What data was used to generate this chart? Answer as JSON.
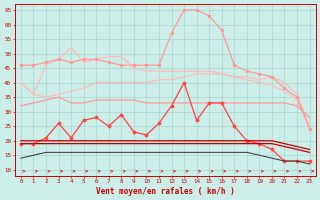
{
  "xlabel": "Vent moyen/en rafales ( km/h )",
  "background_color": "#cceee8",
  "grid_color": "#aad4ce",
  "xlim": [
    -0.5,
    23.5
  ],
  "ylim": [
    8,
    67
  ],
  "yticks": [
    10,
    15,
    20,
    25,
    30,
    35,
    40,
    45,
    50,
    55,
    60,
    65
  ],
  "xticks": [
    0,
    1,
    2,
    3,
    4,
    5,
    6,
    7,
    8,
    9,
    10,
    11,
    12,
    13,
    14,
    15,
    16,
    17,
    18,
    19,
    20,
    21,
    22,
    23
  ],
  "x": [
    0,
    1,
    2,
    3,
    4,
    5,
    6,
    7,
    8,
    9,
    10,
    11,
    12,
    13,
    14,
    15,
    16,
    17,
    18,
    19,
    20,
    21,
    22,
    23
  ],
  "line_pale1": [
    40,
    36,
    35,
    36,
    37,
    38,
    40,
    40,
    40,
    40,
    40,
    41,
    41,
    42,
    43,
    43,
    43,
    42,
    41,
    40,
    39,
    37,
    34,
    25
  ],
  "line_pale2": [
    40,
    36,
    46,
    48,
    52,
    47,
    48,
    49,
    49,
    45,
    44,
    44,
    44,
    44,
    44,
    44,
    43,
    42,
    42,
    41,
    42,
    40,
    36,
    25
  ],
  "line_med_rafales": [
    46,
    46,
    47,
    48,
    47,
    48,
    48,
    47,
    46,
    46,
    46,
    46,
    57,
    65,
    65,
    63,
    58,
    46,
    44,
    43,
    42,
    38,
    35,
    24
  ],
  "line_med_moyen": [
    32,
    33,
    34,
    35,
    33,
    33,
    34,
    34,
    34,
    34,
    33,
    33,
    33,
    33,
    33,
    33,
    33,
    33,
    33,
    33,
    33,
    33,
    32,
    28
  ],
  "line_red1": [
    19,
    19,
    21,
    26,
    21,
    27,
    28,
    25,
    29,
    23,
    22,
    26,
    32,
    40,
    27,
    33,
    33,
    25,
    20,
    19,
    17,
    13,
    13,
    13
  ],
  "line_red2": [
    20,
    20,
    20,
    20,
    20,
    20,
    20,
    20,
    20,
    20,
    20,
    20,
    20,
    20,
    20,
    20,
    20,
    20,
    20,
    20,
    20,
    19,
    18,
    17
  ],
  "line_red3": [
    19,
    19,
    19,
    19,
    19,
    19,
    19,
    19,
    19,
    19,
    19,
    19,
    19,
    19,
    19,
    19,
    19,
    19,
    19,
    19,
    19,
    18,
    17,
    16
  ],
  "line_black": [
    14,
    15,
    16,
    16,
    16,
    16,
    16,
    16,
    16,
    16,
    16,
    16,
    16,
    16,
    16,
    16,
    16,
    16,
    16,
    15,
    14,
    13,
    13,
    12
  ],
  "color_pale": "#ffbbbb",
  "color_med": "#ff9999",
  "color_red1": "#ff4444",
  "color_red2": "#cc0000",
  "color_black": "#333333"
}
